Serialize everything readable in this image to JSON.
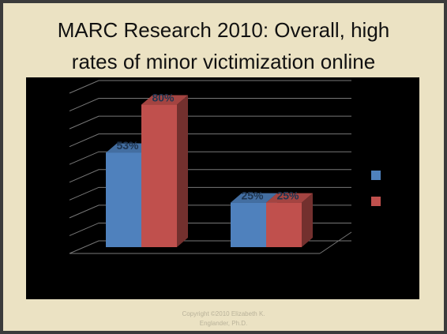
{
  "title": [
    "MARC Research 2010:  Overall, high",
    "rates of minor victimization online"
  ],
  "footer": [
    "Copyright ©2010 Elizabeth K.",
    "Englander, Ph.D."
  ],
  "chart_data": {
    "type": "bar",
    "series": [
      {
        "color": "#4f81bd",
        "values": [
          53,
          25
        ],
        "value_labels": [
          "53%",
          "25%"
        ]
      },
      {
        "color": "#c0504d",
        "values": [
          80,
          25
        ],
        "value_labels": [
          "80%",
          "25%"
        ]
      }
    ],
    "ylim": [
      0,
      90
    ],
    "yticks": [
      0,
      10,
      20,
      30,
      40,
      50,
      60,
      70,
      80,
      90
    ],
    "grid": true
  }
}
